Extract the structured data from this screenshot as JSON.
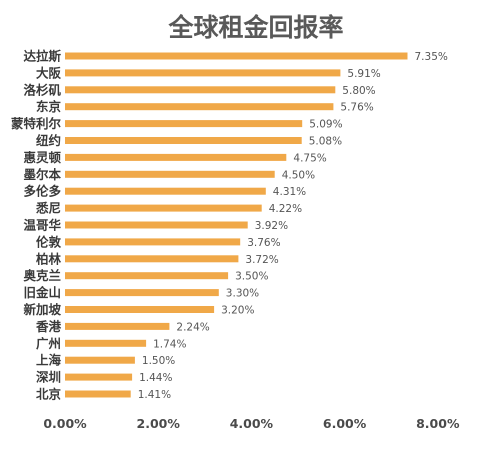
{
  "chart_data": {
    "type": "bar",
    "orientation": "horizontal",
    "title": "全球租金回报率",
    "categories": [
      "达拉斯",
      "大阪",
      "洛杉矶",
      "东京",
      "蒙特利尔",
      "纽约",
      "惠灵顿",
      "墨尔本",
      "多伦多",
      "悉尼",
      "温哥华",
      "伦敦",
      "柏林",
      "奥克兰",
      "旧金山",
      "新加坡",
      "香港",
      "广州",
      "上海",
      "深圳",
      "北京"
    ],
    "values": [
      7.35,
      5.91,
      5.8,
      5.76,
      5.09,
      5.08,
      4.75,
      4.5,
      4.31,
      4.22,
      3.92,
      3.76,
      3.72,
      3.5,
      3.3,
      3.2,
      2.24,
      1.74,
      1.5,
      1.44,
      1.41
    ],
    "value_labels": [
      "7.35%",
      "5.91%",
      "5.80%",
      "5.76%",
      "5.09%",
      "5.08%",
      "4.75%",
      "4.50%",
      "4.31%",
      "4.22%",
      "3.92%",
      "3.76%",
      "3.72%",
      "3.50%",
      "3.30%",
      "3.20%",
      "2.24%",
      "1.74%",
      "1.50%",
      "1.44%",
      "1.41%"
    ],
    "xlim": [
      0,
      8
    ],
    "x_ticks": [
      "0.00%",
      "2.00%",
      "4.00%",
      "6.00%",
      "8.00%"
    ],
    "bar_color": "#F0A848",
    "grid": false,
    "legend": false
  }
}
